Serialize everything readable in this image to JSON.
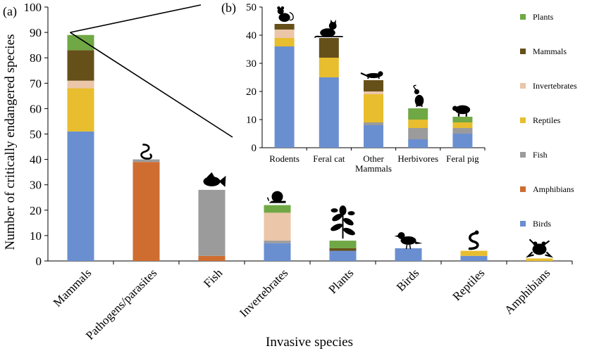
{
  "colors": {
    "Birds": "#6A8FD1",
    "Amphibians": "#CF6D31",
    "Fish": "#9B9B9B",
    "Reptiles": "#E8BD2E",
    "Invertebrates": "#EBC6A9",
    "Mammals": "#66501A",
    "Plants": "#6FA845"
  },
  "legend": [
    "Plants",
    "Mammals",
    "Invertebrates",
    "Reptiles",
    "Fish",
    "Amphibians",
    "Birds"
  ],
  "chart_data": [
    {
      "type": "bar",
      "stacked": true,
      "panel": "(a)",
      "xlabel": "Invasive species",
      "ylabel": "Number  of critically endangered species",
      "ylim": [
        0,
        100
      ],
      "yticks": [
        0,
        10,
        20,
        30,
        40,
        50,
        60,
        70,
        80,
        90,
        100
      ],
      "categories": [
        "Mammals",
        "Pathogens/parasites",
        "Fish",
        "Invertebrates",
        "Plants",
        "Birds",
        "Reptiles",
        "Amphibians"
      ],
      "icons": [
        "",
        "worm-icon",
        "fish-icon",
        "snail-icon",
        "plant-icon",
        "bird-icon",
        "snake-icon",
        "frog-icon"
      ],
      "series": [
        {
          "name": "Birds",
          "values": [
            51,
            0,
            0,
            7,
            4,
            5,
            2,
            0
          ]
        },
        {
          "name": "Amphibians",
          "values": [
            0,
            39,
            2,
            0,
            0,
            0,
            0,
            0
          ]
        },
        {
          "name": "Fish",
          "values": [
            0,
            1,
            26,
            1,
            0,
            0,
            0,
            0
          ]
        },
        {
          "name": "Reptiles",
          "values": [
            17,
            0,
            0,
            0,
            0,
            0,
            2,
            1
          ]
        },
        {
          "name": "Invertebrates",
          "values": [
            3,
            0,
            0,
            11,
            0,
            0,
            0,
            0
          ]
        },
        {
          "name": "Mammals",
          "values": [
            12,
            0,
            0,
            0,
            1,
            0,
            0,
            0
          ]
        },
        {
          "name": "Plants",
          "values": [
            6,
            0,
            0,
            3,
            3,
            0,
            0,
            0
          ]
        }
      ]
    },
    {
      "type": "bar",
      "stacked": true,
      "panel": "(b)",
      "ylim": [
        0,
        50
      ],
      "yticks": [
        0,
        10,
        20,
        30,
        40,
        50
      ],
      "categories": [
        "Rodents",
        "Feral cat",
        "Other\nMammals",
        "Herbivores",
        "Feral pig"
      ],
      "icons": [
        "rat-icon",
        "cat-icon",
        "mustelid-icon",
        "goat-icon",
        "pig-icon"
      ],
      "series": [
        {
          "name": "Birds",
          "values": [
            36,
            25,
            8,
            3,
            5
          ]
        },
        {
          "name": "Amphibians",
          "values": [
            0,
            0,
            0,
            0,
            0
          ]
        },
        {
          "name": "Fish",
          "values": [
            0,
            0,
            1,
            4,
            2
          ]
        },
        {
          "name": "Reptiles",
          "values": [
            3,
            7,
            10,
            3,
            2
          ]
        },
        {
          "name": "Invertebrates",
          "values": [
            3,
            0,
            1,
            0,
            0
          ]
        },
        {
          "name": "Mammals",
          "values": [
            2,
            7,
            4,
            0,
            0
          ]
        },
        {
          "name": "Plants",
          "values": [
            0,
            0,
            0,
            4,
            2
          ]
        }
      ]
    }
  ]
}
